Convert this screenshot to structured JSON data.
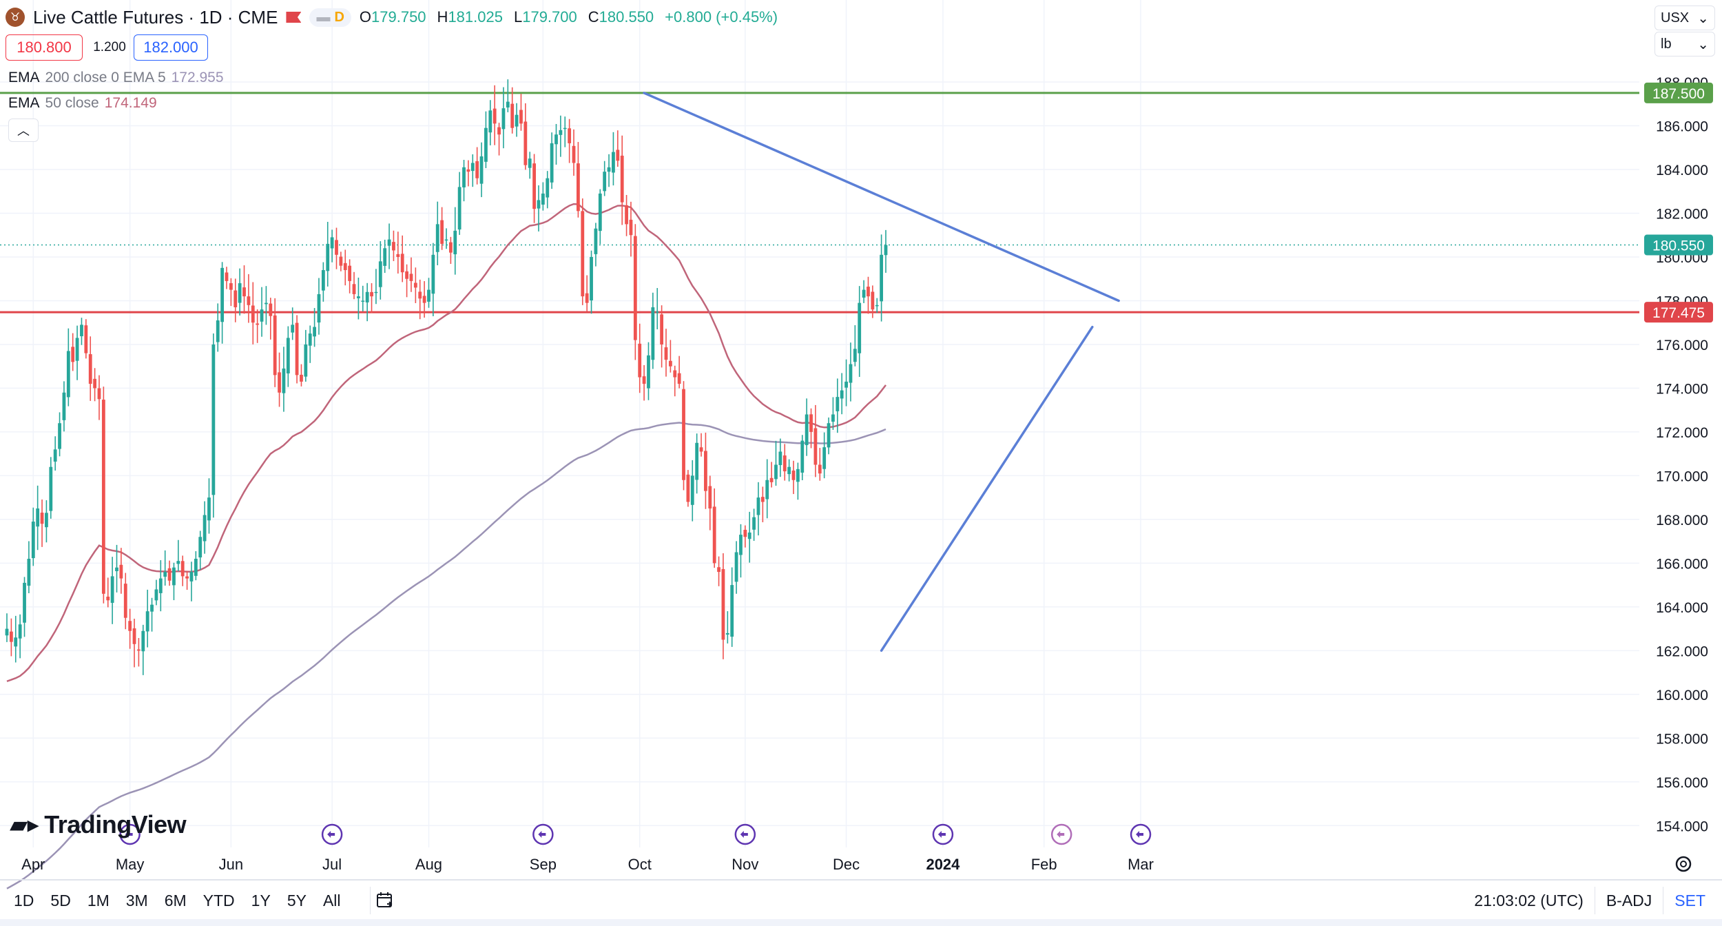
{
  "header": {
    "symbol_title": "Live Cattle Futures · 1D · CME",
    "interval_badge": "D",
    "ohlc": {
      "o_label": "O",
      "o": "179.750",
      "h_label": "H",
      "h": "181.025",
      "l_label": "L",
      "l": "179.700",
      "c_label": "C",
      "c": "180.550",
      "change": "+0.800 (+0.45%)"
    }
  },
  "trade": {
    "sell": "180.800",
    "spread": "1.200",
    "buy": "182.000"
  },
  "indicators": [
    {
      "name": "EMA",
      "params": "200 close 0 EMA 5",
      "value": "172.955",
      "color": "#9b93b5"
    },
    {
      "name": "EMA",
      "params": "50 close",
      "value": "174.149",
      "color": "#c0657a"
    }
  ],
  "units": {
    "currency": "USX",
    "unit": "lb"
  },
  "branding": {
    "logo_text": "TradingView"
  },
  "bottom": {
    "ranges": [
      "1D",
      "5D",
      "1M",
      "3M",
      "6M",
      "YTD",
      "1Y",
      "5Y",
      "All"
    ],
    "clock": "21:03:02 (UTC)",
    "adj": "B-ADJ",
    "session": "SET"
  },
  "colors": {
    "up": "#26a69a",
    "down": "#ef5350",
    "trendline": "#5b7fd6",
    "resistance": "#5aa04a",
    "support": "#e0454a",
    "ema50": "#c0657a",
    "ema200": "#9b93b5"
  },
  "chart_data": {
    "type": "candlestick",
    "y_axis": {
      "min": 153,
      "max": 188.6,
      "ticks": [
        154,
        156,
        158,
        160,
        162,
        164,
        166,
        168,
        170,
        172,
        174,
        176,
        178,
        180,
        182,
        184,
        186,
        188
      ],
      "tick_labels": [
        "154.000",
        "156.000",
        "158.000",
        "160.000",
        "162.000",
        "164.000",
        "166.000",
        "168.000",
        "170.000",
        "172.000",
        "174.000",
        "176.000",
        "178.000",
        "180.000",
        "182.000",
        "184.000",
        "186.000",
        "188.000"
      ]
    },
    "x_axis": {
      "month_labels": [
        "Apr",
        "May",
        "Jun",
        "Jul",
        "Aug",
        "Sep",
        "Oct",
        "Nov",
        "Dec",
        "2024",
        "Feb",
        "Mar"
      ],
      "month_bar_index": [
        6,
        28,
        51,
        74,
        96,
        122,
        144,
        168,
        191,
        213,
        236,
        258
      ],
      "bold_label": "2024"
    },
    "price_labels": [
      {
        "value": 187.5,
        "text": "187.500",
        "color": "#5aa04a"
      },
      {
        "value": 180.55,
        "text": "180.550",
        "color": "#26a69a"
      },
      {
        "value": 177.475,
        "text": "177.475",
        "color": "#e0454a"
      }
    ],
    "horizontal_lines": [
      {
        "value": 187.5,
        "color": "#5aa04a"
      },
      {
        "value": 177.475,
        "color": "#e0454a"
      }
    ],
    "last_price_line": 180.55,
    "trendlines": [
      {
        "from": [
          145,
          187.5
        ],
        "to": [
          253,
          178.0
        ]
      },
      {
        "from": [
          199,
          162.0
        ],
        "to": [
          247,
          176.8
        ]
      }
    ],
    "event_markers_bar_index": [
      28,
      74,
      122,
      168,
      213,
      258
    ],
    "event_marker_special_index": 240,
    "closes": [
      163.0,
      162.4,
      162.6,
      163.2,
      165.1,
      166.2,
      167.9,
      168.5,
      167.8,
      168.3,
      170.4,
      171.2,
      172.4,
      173.8,
      175.7,
      175.2,
      176.3,
      176.9,
      175.6,
      174.2,
      174.0,
      173.5,
      164.6,
      164.3,
      165.4,
      165.8,
      165.3,
      163.5,
      162.9,
      162.3,
      162.0,
      162.9,
      163.8,
      164.1,
      164.8,
      165.3,
      165.6,
      165.2,
      165.8,
      166.1,
      165.4,
      165.3,
      165.6,
      166.2,
      167.2,
      168.2,
      169.0,
      176.0,
      177.1,
      179.5,
      178.9,
      178.5,
      177.7,
      178.8,
      178.2,
      177.8,
      177.0,
      176.9,
      177.6,
      177.9,
      177.3,
      174.6,
      173.8,
      174.9,
      176.3,
      176.9,
      174.6,
      174.3,
      176.0,
      176.5,
      176.8,
      178.3,
      179.4,
      180.6,
      180.9,
      180.1,
      179.6,
      179.4,
      178.9,
      178.3,
      178.2,
      178.0,
      178.4,
      178.2,
      178.4,
      179.8,
      180.4,
      180.8,
      180.3,
      180.0,
      179.3,
      179.0,
      178.9,
      178.6,
      178.1,
      177.9,
      178.5,
      180.1,
      181.5,
      180.6,
      180.8,
      180.2,
      181.2,
      183.2,
      184.1,
      183.9,
      184.3,
      183.6,
      184.6,
      185.9,
      186.7,
      186.1,
      185.6,
      186.8,
      187.1,
      185.9,
      186.5,
      186.1,
      184.2,
      184.5,
      182.2,
      182.6,
      182.9,
      183.6,
      185.2,
      185.6,
      185.8,
      185.9,
      185.2,
      184.3,
      182.1,
      178.2,
      177.9,
      180.0,
      181.3,
      182.9,
      183.9,
      184.1,
      184.8,
      184.4,
      182.5,
      181.5,
      181.0,
      176.2,
      174.5,
      174.2,
      175.5,
      177.7,
      177.5,
      176.0,
      175.3,
      175.0,
      174.5,
      174.2,
      169.8,
      168.8,
      170.0,
      171.5,
      171.1,
      169.3,
      168.5,
      166.0,
      165.6,
      162.5,
      162.8,
      165.0,
      166.5,
      167.3,
      167.2,
      167.4,
      168.1,
      169.0,
      168.8,
      169.8,
      169.7,
      170.5,
      171.1,
      170.2,
      170.4,
      169.8,
      170.3,
      171.6,
      172.8,
      172.0,
      170.5,
      170.1,
      171.3,
      172.4,
      172.8,
      173.6,
      173.9,
      174.3,
      175.1,
      175.8,
      177.9,
      178.5,
      178.2,
      177.6,
      177.8,
      180.1,
      180.55
    ]
  }
}
